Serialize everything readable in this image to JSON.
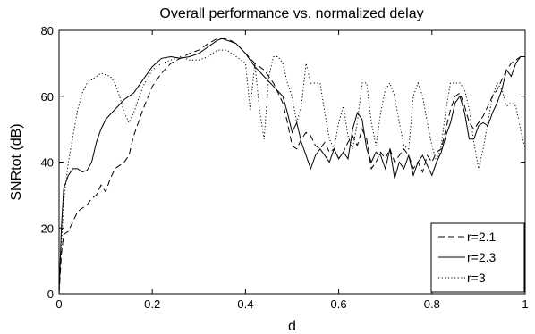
{
  "chart_data": {
    "type": "line",
    "title": "Overall performance vs. normalized delay",
    "xlabel": "d",
    "ylabel": "SNRtot (dB)",
    "xlim": [
      0,
      1
    ],
    "ylim": [
      0,
      80
    ],
    "xticks": [
      0,
      0.2,
      0.4,
      0.6,
      0.8,
      1
    ],
    "xtick_labels": [
      "0",
      "0.2",
      "0.4",
      "0.6",
      "0.8",
      "1"
    ],
    "yticks": [
      0,
      20,
      40,
      60,
      80
    ],
    "ytick_labels": [
      "0",
      "20",
      "40",
      "60",
      "80"
    ],
    "grid": false,
    "legend_position": "bottom-right",
    "series": [
      {
        "name": "r=2.1",
        "style": "dashed",
        "color": "#000000",
        "points": [
          [
            0,
            0
          ],
          [
            0.005,
            12
          ],
          [
            0.01,
            18
          ],
          [
            0.02,
            19
          ],
          [
            0.03,
            22
          ],
          [
            0.04,
            25
          ],
          [
            0.05,
            26
          ],
          [
            0.06,
            27
          ],
          [
            0.07,
            29
          ],
          [
            0.08,
            30
          ],
          [
            0.09,
            33
          ],
          [
            0.1,
            31
          ],
          [
            0.11,
            35
          ],
          [
            0.12,
            38
          ],
          [
            0.13,
            39
          ],
          [
            0.14,
            40
          ],
          [
            0.15,
            42
          ],
          [
            0.16,
            48
          ],
          [
            0.18,
            56
          ],
          [
            0.2,
            63
          ],
          [
            0.22,
            67
          ],
          [
            0.24,
            70
          ],
          [
            0.26,
            71.5
          ],
          [
            0.28,
            73
          ],
          [
            0.3,
            74
          ],
          [
            0.32,
            76
          ],
          [
            0.34,
            77.5
          ],
          [
            0.36,
            77.5
          ],
          [
            0.38,
            76
          ],
          [
            0.4,
            73
          ],
          [
            0.42,
            70
          ],
          [
            0.44,
            68
          ],
          [
            0.46,
            64
          ],
          [
            0.48,
            58
          ],
          [
            0.49,
            52
          ],
          [
            0.5,
            45
          ],
          [
            0.51,
            44
          ],
          [
            0.52,
            47
          ],
          [
            0.53,
            49
          ],
          [
            0.54,
            48
          ],
          [
            0.55,
            45
          ],
          [
            0.56,
            44
          ],
          [
            0.57,
            46
          ],
          [
            0.58,
            43
          ],
          [
            0.59,
            44
          ],
          [
            0.6,
            41
          ],
          [
            0.61,
            43
          ],
          [
            0.62,
            46
          ],
          [
            0.63,
            48
          ],
          [
            0.64,
            45
          ],
          [
            0.65,
            50
          ],
          [
            0.66,
            47
          ],
          [
            0.67,
            38
          ],
          [
            0.68,
            40
          ],
          [
            0.69,
            43
          ],
          [
            0.7,
            41
          ],
          [
            0.71,
            44
          ],
          [
            0.72,
            40
          ],
          [
            0.73,
            42
          ],
          [
            0.74,
            44
          ],
          [
            0.75,
            42
          ],
          [
            0.76,
            38
          ],
          [
            0.77,
            40
          ],
          [
            0.78,
            37
          ],
          [
            0.79,
            42
          ],
          [
            0.8,
            40
          ],
          [
            0.81,
            43
          ],
          [
            0.82,
            44
          ],
          [
            0.83,
            50
          ],
          [
            0.84,
            56
          ],
          [
            0.85,
            60
          ],
          [
            0.86,
            61
          ],
          [
            0.87,
            57
          ],
          [
            0.88,
            52
          ],
          [
            0.89,
            50
          ],
          [
            0.9,
            52
          ],
          [
            0.91,
            54
          ],
          [
            0.92,
            57
          ],
          [
            0.93,
            60
          ],
          [
            0.94,
            62
          ],
          [
            0.95,
            65
          ],
          [
            0.96,
            68
          ],
          [
            0.97,
            70
          ],
          [
            0.98,
            71
          ],
          [
            0.99,
            72
          ],
          [
            1,
            72
          ]
        ]
      },
      {
        "name": "r=2.3",
        "style": "solid",
        "color": "#000000",
        "points": [
          [
            0,
            0
          ],
          [
            0.005,
            20
          ],
          [
            0.01,
            32
          ],
          [
            0.02,
            36
          ],
          [
            0.03,
            38
          ],
          [
            0.04,
            38
          ],
          [
            0.05,
            37
          ],
          [
            0.06,
            37.5
          ],
          [
            0.07,
            40
          ],
          [
            0.08,
            46
          ],
          [
            0.09,
            50
          ],
          [
            0.1,
            53
          ],
          [
            0.12,
            56
          ],
          [
            0.14,
            59
          ],
          [
            0.16,
            61
          ],
          [
            0.18,
            65
          ],
          [
            0.2,
            69
          ],
          [
            0.22,
            71.5
          ],
          [
            0.24,
            72
          ],
          [
            0.26,
            71.5
          ],
          [
            0.28,
            72
          ],
          [
            0.3,
            73
          ],
          [
            0.32,
            75
          ],
          [
            0.34,
            77
          ],
          [
            0.35,
            77.5
          ],
          [
            0.36,
            77
          ],
          [
            0.38,
            76
          ],
          [
            0.4,
            73
          ],
          [
            0.42,
            69
          ],
          [
            0.44,
            66
          ],
          [
            0.46,
            63
          ],
          [
            0.48,
            60
          ],
          [
            0.49,
            55
          ],
          [
            0.5,
            49
          ],
          [
            0.51,
            52
          ],
          [
            0.52,
            46
          ],
          [
            0.53,
            42
          ],
          [
            0.54,
            38
          ],
          [
            0.55,
            42
          ],
          [
            0.56,
            44
          ],
          [
            0.57,
            42
          ],
          [
            0.58,
            40
          ],
          [
            0.59,
            44
          ],
          [
            0.6,
            41
          ],
          [
            0.61,
            43
          ],
          [
            0.62,
            41
          ],
          [
            0.63,
            50
          ],
          [
            0.64,
            55
          ],
          [
            0.65,
            53
          ],
          [
            0.66,
            44
          ],
          [
            0.67,
            40
          ],
          [
            0.68,
            43
          ],
          [
            0.69,
            42
          ],
          [
            0.7,
            38
          ],
          [
            0.71,
            44
          ],
          [
            0.72,
            35
          ],
          [
            0.73,
            40
          ],
          [
            0.74,
            38
          ],
          [
            0.75,
            42
          ],
          [
            0.76,
            36
          ],
          [
            0.77,
            40
          ],
          [
            0.78,
            42
          ],
          [
            0.79,
            39
          ],
          [
            0.8,
            36
          ],
          [
            0.81,
            40
          ],
          [
            0.82,
            43
          ],
          [
            0.83,
            48
          ],
          [
            0.84,
            52
          ],
          [
            0.85,
            58
          ],
          [
            0.86,
            60
          ],
          [
            0.87,
            55
          ],
          [
            0.88,
            47
          ],
          [
            0.89,
            47
          ],
          [
            0.9,
            51
          ],
          [
            0.91,
            52
          ],
          [
            0.92,
            51
          ],
          [
            0.93,
            55
          ],
          [
            0.94,
            58
          ],
          [
            0.95,
            62
          ],
          [
            0.96,
            68
          ],
          [
            0.97,
            66
          ],
          [
            0.98,
            70
          ],
          [
            0.99,
            72
          ],
          [
            1,
            72
          ]
        ]
      },
      {
        "name": "r=3",
        "style": "dotted",
        "color": "#000000",
        "points": [
          [
            0,
            0
          ],
          [
            0.005,
            15
          ],
          [
            0.01,
            28
          ],
          [
            0.02,
            40
          ],
          [
            0.03,
            48
          ],
          [
            0.04,
            56
          ],
          [
            0.05,
            61
          ],
          [
            0.06,
            64
          ],
          [
            0.07,
            65
          ],
          [
            0.08,
            66
          ],
          [
            0.09,
            67
          ],
          [
            0.1,
            66.5
          ],
          [
            0.11,
            66
          ],
          [
            0.12,
            64
          ],
          [
            0.13,
            60
          ],
          [
            0.14,
            55
          ],
          [
            0.15,
            52
          ],
          [
            0.16,
            55
          ],
          [
            0.18,
            63
          ],
          [
            0.2,
            68
          ],
          [
            0.22,
            70
          ],
          [
            0.24,
            71
          ],
          [
            0.26,
            72
          ],
          [
            0.28,
            71
          ],
          [
            0.3,
            71
          ],
          [
            0.32,
            72
          ],
          [
            0.34,
            74
          ],
          [
            0.36,
            74
          ],
          [
            0.38,
            72
          ],
          [
            0.4,
            70
          ],
          [
            0.41,
            56
          ],
          [
            0.42,
            70
          ],
          [
            0.43,
            56
          ],
          [
            0.44,
            47
          ],
          [
            0.45,
            66
          ],
          [
            0.46,
            72
          ],
          [
            0.47,
            72
          ],
          [
            0.48,
            70
          ],
          [
            0.49,
            64
          ],
          [
            0.5,
            60
          ],
          [
            0.51,
            52
          ],
          [
            0.52,
            57
          ],
          [
            0.53,
            70
          ],
          [
            0.54,
            64
          ],
          [
            0.55,
            64
          ],
          [
            0.56,
            64
          ],
          [
            0.57,
            55
          ],
          [
            0.58,
            47
          ],
          [
            0.59,
            44
          ],
          [
            0.6,
            52
          ],
          [
            0.61,
            57
          ],
          [
            0.62,
            48
          ],
          [
            0.63,
            44
          ],
          [
            0.64,
            52
          ],
          [
            0.65,
            64
          ],
          [
            0.66,
            64
          ],
          [
            0.67,
            52
          ],
          [
            0.68,
            45
          ],
          [
            0.69,
            55
          ],
          [
            0.7,
            62
          ],
          [
            0.71,
            64
          ],
          [
            0.72,
            60
          ],
          [
            0.73,
            52
          ],
          [
            0.74,
            45
          ],
          [
            0.75,
            44
          ],
          [
            0.76,
            60
          ],
          [
            0.77,
            64
          ],
          [
            0.78,
            60
          ],
          [
            0.79,
            52
          ],
          [
            0.8,
            45
          ],
          [
            0.81,
            40
          ],
          [
            0.82,
            45
          ],
          [
            0.83,
            56
          ],
          [
            0.84,
            64
          ],
          [
            0.85,
            64
          ],
          [
            0.86,
            64
          ],
          [
            0.87,
            62
          ],
          [
            0.88,
            56
          ],
          [
            0.89,
            46
          ],
          [
            0.9,
            38
          ],
          [
            0.91,
            44
          ],
          [
            0.92,
            52
          ],
          [
            0.93,
            60
          ],
          [
            0.94,
            64
          ],
          [
            0.95,
            62
          ],
          [
            0.96,
            57
          ],
          [
            0.97,
            58
          ],
          [
            0.98,
            57
          ],
          [
            0.99,
            50
          ],
          [
            1,
            44
          ]
        ]
      }
    ]
  }
}
